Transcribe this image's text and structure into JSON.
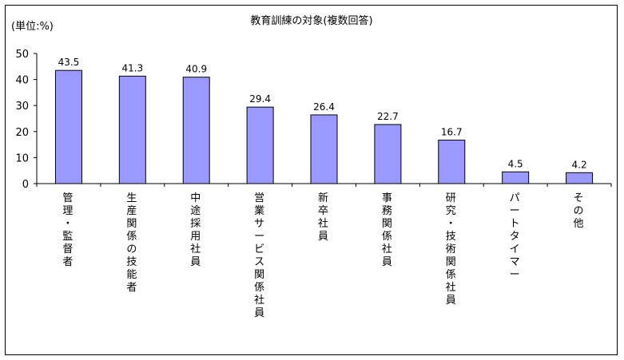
{
  "chart_data": {
    "type": "bar",
    "title": "教育訓練の対象(複数回答)",
    "unit_label": "(単位:%)",
    "ylim": [
      0,
      50
    ],
    "yticks": [
      "0",
      "10",
      "20",
      "30",
      "40",
      "50"
    ],
    "grid": false,
    "categories": [
      "管理・監督者",
      "生産関係の技能者",
      "中途採用社員",
      "営業サービス関係社員",
      "新卒社員",
      "事務関係社員",
      "研究・技術関係社員",
      "パートタイマー",
      "その他"
    ],
    "values": [
      43.5,
      41.3,
      40.9,
      29.4,
      26.4,
      22.7,
      16.7,
      4.5,
      4.2
    ],
    "value_labels": [
      "43.5",
      "41.3",
      "40.9",
      "29.4",
      "26.4",
      "22.7",
      "16.7",
      "4.5",
      "4.2"
    ],
    "bar_color": "#9999ff"
  }
}
